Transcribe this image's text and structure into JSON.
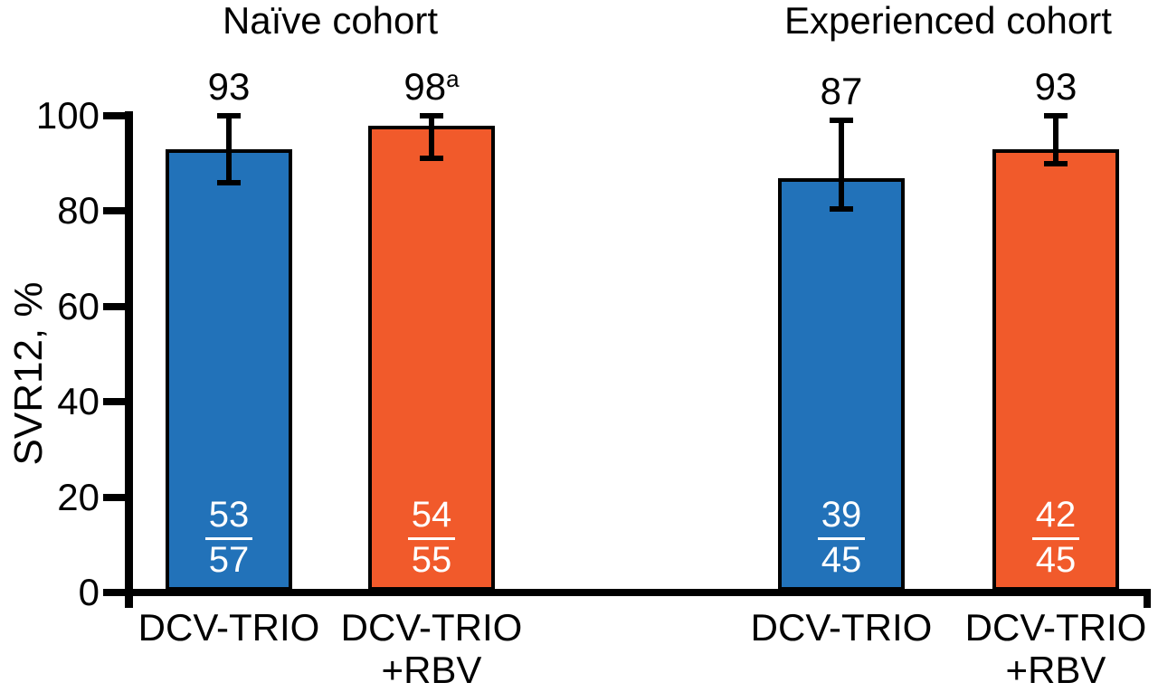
{
  "chart_data": {
    "type": "bar",
    "title": "",
    "ylabel": "SVR12, %",
    "xlabel": "",
    "ylim": [
      0,
      100
    ],
    "yticks": [
      0,
      20,
      40,
      60,
      80,
      100
    ],
    "grid": false,
    "legend": "none",
    "error_bars": "95% CI (read from pixels, approximate)",
    "colors": {
      "bar_blue": "#2272B9",
      "bar_orange": "#F15A2B",
      "axis": "#000000",
      "bar_border": "#000000",
      "fraction_text": "#ffffff",
      "background": "#ffffff"
    },
    "groups": [
      {
        "name": "Naïve cohort",
        "bars": [
          {
            "label_lines": [
              "DCV-TRIO"
            ],
            "value": 93,
            "value_label": "93",
            "value_superscript": "",
            "numerator": "53",
            "denominator": "57",
            "ci": [
              86,
              100
            ],
            "color": "#2272B9"
          },
          {
            "label_lines": [
              "DCV-TRIO",
              "+RBV"
            ],
            "value": 98,
            "value_label": "98",
            "value_superscript": "a",
            "numerator": "54",
            "denominator": "55",
            "ci": [
              91,
              100
            ],
            "color": "#F15A2B"
          }
        ]
      },
      {
        "name": "Experienced cohort",
        "bars": [
          {
            "label_lines": [
              "DCV-TRIO"
            ],
            "value": 87,
            "value_label": "87",
            "value_superscript": "",
            "numerator": "39",
            "denominator": "45",
            "ci": [
              80.5,
              99
            ],
            "color": "#2272B9"
          },
          {
            "label_lines": [
              "DCV-TRIO",
              "+RBV"
            ],
            "value": 93,
            "value_label": "93",
            "value_superscript": "",
            "numerator": "42",
            "denominator": "45",
            "ci": [
              90,
              100
            ],
            "color": "#F15A2B"
          }
        ]
      }
    ]
  }
}
